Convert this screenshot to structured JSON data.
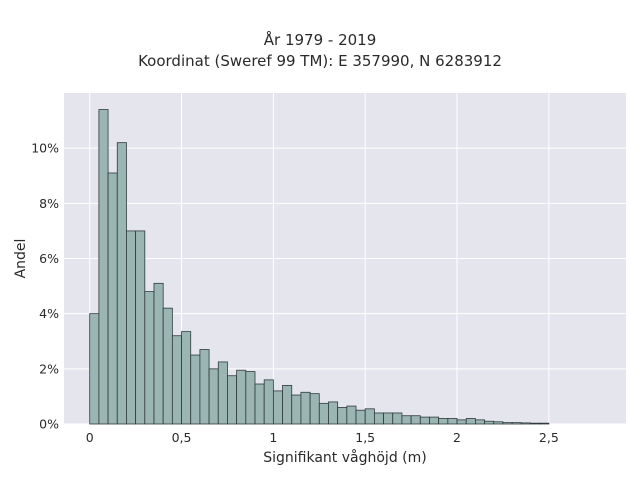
{
  "chart_data": {
    "type": "bar",
    "title": "År 1979 - 2019",
    "subtitle": "Koordinat (Sweref 99 TM): E 357990, N 6283912",
    "xlabel": "Signifikant våghöjd (m)",
    "ylabel": "Andel",
    "xlim": [
      -0.14,
      2.92
    ],
    "ylim": [
      0,
      12
    ],
    "x_ticks": [
      0,
      0.5,
      1,
      1.5,
      2,
      2.5
    ],
    "x_tick_labels": [
      "0",
      "0,5",
      "1",
      "1,5",
      "2",
      "2,5"
    ],
    "y_ticks": [
      0,
      2,
      4,
      6,
      8,
      10
    ],
    "y_tick_labels": [
      "0%",
      "2%",
      "4%",
      "6%",
      "8%",
      "10%"
    ],
    "bin_width": 0.05,
    "bin_start": 0.0,
    "values": [
      4.0,
      11.4,
      9.1,
      10.2,
      7.0,
      7.0,
      4.8,
      5.1,
      4.2,
      3.2,
      3.35,
      2.5,
      2.7,
      2.0,
      2.25,
      1.75,
      1.95,
      1.9,
      1.45,
      1.6,
      1.2,
      1.4,
      1.05,
      1.15,
      1.1,
      0.75,
      0.8,
      0.6,
      0.65,
      0.5,
      0.55,
      0.4,
      0.4,
      0.4,
      0.3,
      0.3,
      0.25,
      0.25,
      0.2,
      0.2,
      0.15,
      0.2,
      0.15,
      0.1,
      0.08,
      0.05,
      0.05,
      0.04,
      0.03,
      0.03
    ],
    "grid": true,
    "colors": {
      "plot_background": "#e5e5ee",
      "bar_fill": "#9bb5b3",
      "bar_edge": "#2d3a3a",
      "grid": "#ffffff",
      "text": "#2a2a2a"
    }
  }
}
